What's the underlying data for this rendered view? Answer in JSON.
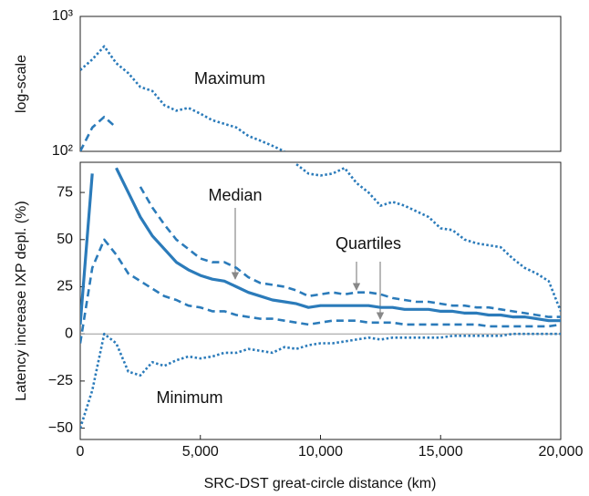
{
  "chart_data": {
    "type": "line",
    "xlabel": "SRC-DST great-circle distance (km)",
    "ylabel": "Latency increase IXP depl. (%)",
    "y2label": "log-scale",
    "x": [
      0,
      500,
      1000,
      1500,
      2000,
      2500,
      3000,
      3500,
      4000,
      4500,
      5000,
      5500,
      6000,
      6500,
      7000,
      7500,
      8000,
      8500,
      9000,
      9500,
      10000,
      10500,
      11000,
      11500,
      12000,
      12500,
      13000,
      13500,
      14000,
      14500,
      15000,
      15500,
      16000,
      16500,
      17000,
      17500,
      18000,
      18500,
      19000,
      19500,
      20000
    ],
    "xlim": [
      0,
      20000
    ],
    "xticks": [
      0,
      {
        "value": 5000,
        "label": "5,000"
      },
      {
        "value": 10000,
        "label": "10,000"
      },
      {
        "value": 15000,
        "label": "15,000"
      },
      {
        "value": 20000,
        "label": "20,000"
      }
    ],
    "ylim": [
      -56,
      91
    ],
    "yticks": [
      {
        "value": -50,
        "label": "−50"
      },
      {
        "value": -25,
        "label": "−25"
      },
      0,
      25,
      50,
      75
    ],
    "y2lim": [
      100,
      1000
    ],
    "y2ticks": [
      {
        "value": 100,
        "label": "10²"
      },
      {
        "value": 1000,
        "label": "10³"
      }
    ],
    "y2scale": "log",
    "zero_line": true,
    "series": [
      {
        "color": "#2b7bba",
        "dash": "dotted",
        "values": [
          400,
          480,
          600,
          450,
          380,
          300,
          280,
          220,
          200,
          210,
          190,
          170,
          160,
          150,
          130,
          120,
          110,
          100,
          90,
          85,
          84,
          85,
          88,
          80,
          75,
          68,
          70,
          68,
          65,
          62,
          56,
          55,
          50,
          48,
          47,
          46,
          40,
          35,
          32,
          28,
          12
        ]
      },
      {
        "color": "#2b7bba",
        "dash": "dashed",
        "values": [
          100,
          150,
          180,
          150,
          95,
          78,
          67,
          58,
          50,
          45,
          40,
          38,
          38,
          35,
          30,
          27,
          26,
          25,
          23,
          20,
          21,
          22,
          21,
          22,
          22,
          21,
          19,
          18,
          17,
          17,
          16,
          15,
          15,
          14,
          14,
          13,
          12,
          11,
          10,
          9,
          9
        ]
      },
      {
        "color": "#2b7bba",
        "dash": "solid",
        "values": [
          5,
          85,
          105,
          88,
          75,
          62,
          52,
          45,
          38,
          34,
          31,
          29,
          28,
          25,
          22,
          20,
          18,
          17,
          16,
          14,
          15,
          15,
          15,
          15,
          15,
          14,
          14,
          13,
          13,
          13,
          12,
          12,
          11,
          11,
          10,
          10,
          9,
          9,
          8,
          7,
          7
        ]
      },
      {
        "color": "#2b7bba",
        "dash": "dashed",
        "values": [
          -5,
          35,
          50,
          42,
          32,
          28,
          24,
          20,
          18,
          15,
          14,
          12,
          12,
          10,
          9,
          8,
          8,
          7,
          6,
          5,
          6,
          7,
          7,
          7,
          6,
          6,
          6,
          5,
          5,
          5,
          5,
          5,
          5,
          5,
          4,
          4,
          4,
          4,
          4,
          4,
          5
        ]
      },
      {
        "color": "#2b7bba",
        "dash": "dotted",
        "values": [
          -50,
          -30,
          0,
          -5,
          -20,
          -22,
          -15,
          -17,
          -14,
          -12,
          -13,
          -12,
          -10,
          -10,
          -8,
          -9,
          -10,
          -7,
          -8,
          -6,
          -5,
          -5,
          -4,
          -3,
          -2,
          -3,
          -2,
          -2,
          -2,
          -2,
          -2,
          -1,
          -1,
          -1,
          -1,
          -1,
          0,
          0,
          0,
          0,
          0
        ]
      }
    ],
    "annotations": [
      "Maximum",
      "Median",
      "Quartiles",
      "Minimum"
    ]
  }
}
